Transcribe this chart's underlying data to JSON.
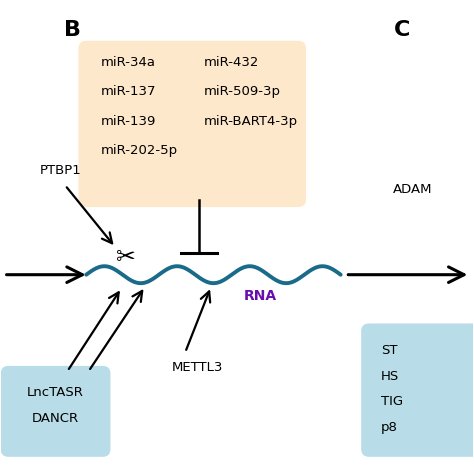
{
  "panel_label": "B",
  "panel_label_c": "C",
  "background_color": "#ffffff",
  "mir_box_color": "#fde8cc",
  "lnc_box_color": "#b8dde8",
  "mir_box_text_left": [
    "miR-34a",
    "miR-137",
    "miR-139",
    "miR-202-5p"
  ],
  "mir_box_text_right": [
    "miR-432",
    "miR-509-3p",
    "miR-BART4-3p"
  ],
  "lnc_box_text": [
    "LncTASR",
    "DANCR"
  ],
  "right_box_text": [
    "ST",
    "HS",
    "TIG",
    "p8"
  ],
  "rna_label": "RNA",
  "rna_color": "#6a0dad",
  "ptbp1_label": "PTBP1",
  "mettl3_label": "METTL3",
  "adam_label": "ADAM",
  "wave_color": "#1a6b8a",
  "arrow_color": "#1a1a1a"
}
